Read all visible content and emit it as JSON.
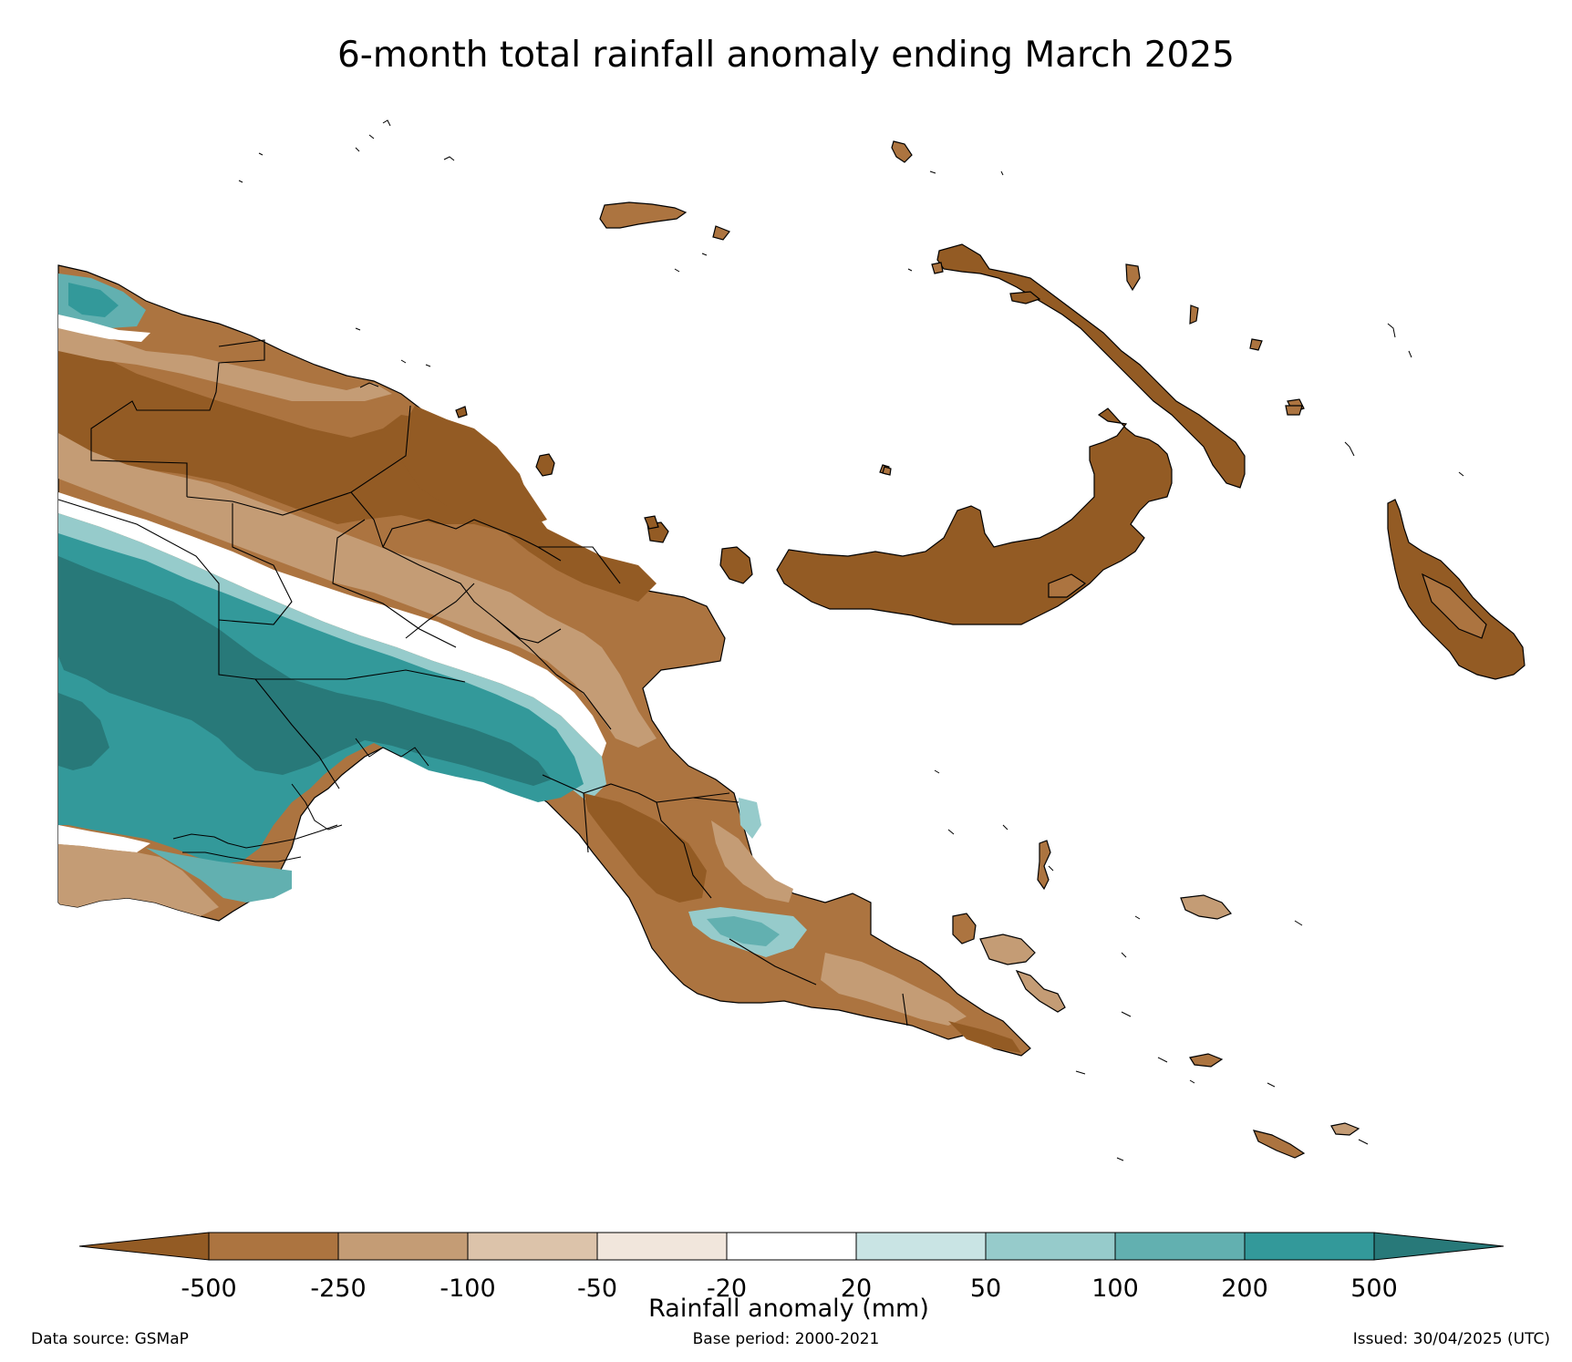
{
  "title": "6-month total rainfall anomaly ending March 2025",
  "colorbar": {
    "label": "Rainfall anomaly (mm)",
    "ticks": [
      "-500",
      "-250",
      "-100",
      "-50",
      "-20",
      "20",
      "50",
      "100",
      "200",
      "500"
    ],
    "colors": [
      "#935b24",
      "#ac7440",
      "#c49c75",
      "#dcc3aa",
      "#f1e6dc",
      "#ffffff",
      "#c9e4e4",
      "#96cbcb",
      "#62b0b0",
      "#33999a",
      "#287979"
    ],
    "extend": "both"
  },
  "footer": {
    "source": "Data source: GSMaP",
    "base_period": "Base period: 2000-2021",
    "issued": "Issued: 30/04/2025 (UTC)"
  }
}
